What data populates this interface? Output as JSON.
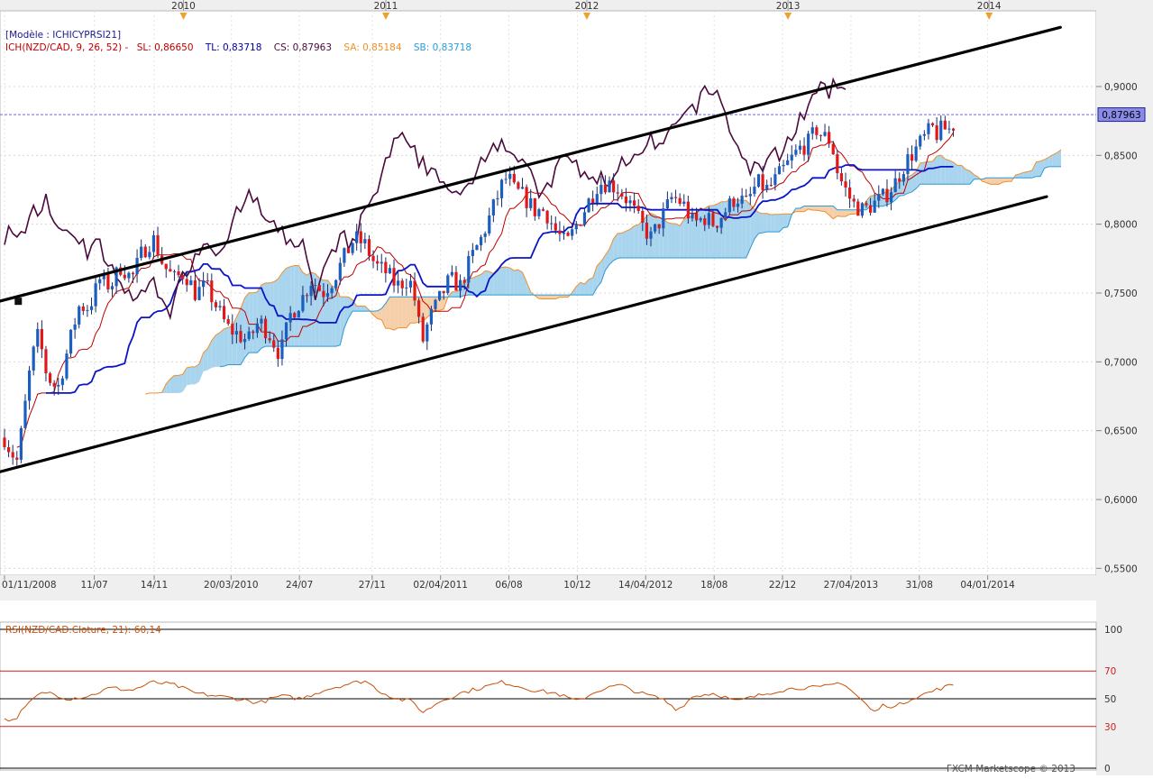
{
  "chart_data": {
    "type": "candlestick",
    "model_label": "[Modèle : ICHICYPRSI21]",
    "legend": [
      {
        "text": "ICH(NZD/CAD, 9, 26, 52) -",
        "color": "#c00000"
      },
      {
        "text": "SL: 0,86650",
        "color": "#c00000"
      },
      {
        "text": "TL: 0,83718",
        "color": "#0000a0"
      },
      {
        "text": "CS: 0,87963",
        "color": "#4a0a3c"
      },
      {
        "text": "SA: 0,85184",
        "color": "#f0902a"
      },
      {
        "text": "SB: 0,83718",
        "color": "#2a9ad8"
      }
    ],
    "current_price_label": "0,87963",
    "current_price": 0.87963,
    "year_markers": [
      {
        "label": "2010",
        "t": 0.1688
      },
      {
        "label": "2011",
        "t": 0.3597
      },
      {
        "label": "2012",
        "t": 0.5493
      },
      {
        "label": "2013",
        "t": 0.739
      },
      {
        "label": "2014",
        "t": 0.9287
      }
    ],
    "date_labels": [
      {
        "label": "01/11/2008",
        "t": 0.0
      },
      {
        "label": "11/07",
        "t": 0.0847
      },
      {
        "label": "14/11",
        "t": 0.1412
      },
      {
        "label": "20/03/2010",
        "t": 0.2137
      },
      {
        "label": "24/07",
        "t": 0.2782
      },
      {
        "label": "27/11",
        "t": 0.3468
      },
      {
        "label": "02/04/2011",
        "t": 0.4113
      },
      {
        "label": "06/08",
        "t": 0.4758
      },
      {
        "label": "10/12",
        "t": 0.5403
      },
      {
        "label": "14/04/2012",
        "t": 0.6048
      },
      {
        "label": "18/08",
        "t": 0.6694
      },
      {
        "label": "22/12",
        "t": 0.7339
      },
      {
        "label": "27/04/2013",
        "t": 0.7984
      },
      {
        "label": "31/08",
        "t": 0.8629
      },
      {
        "label": "04/01/2014",
        "t": 0.9274
      }
    ],
    "y_ticks": [
      "0,9000",
      "0,8500",
      "0,8000",
      "0,7500",
      "0,7000",
      "0,6500",
      "0,6000",
      "0,5500"
    ],
    "y_tick_values": [
      0.9,
      0.85,
      0.8,
      0.75,
      0.7,
      0.65,
      0.6,
      0.55
    ],
    "ylim": [
      0.545,
      0.955
    ],
    "price_anchors": [
      [
        0.0,
        0.645
      ],
      [
        0.006,
        0.635
      ],
      [
        0.012,
        0.628
      ],
      [
        0.018,
        0.66
      ],
      [
        0.025,
        0.7
      ],
      [
        0.032,
        0.72
      ],
      [
        0.04,
        0.69
      ],
      [
        0.05,
        0.68
      ],
      [
        0.06,
        0.71
      ],
      [
        0.07,
        0.74
      ],
      [
        0.08,
        0.74
      ],
      [
        0.09,
        0.76
      ],
      [
        0.1,
        0.755
      ],
      [
        0.11,
        0.77
      ],
      [
        0.12,
        0.76
      ],
      [
        0.13,
        0.78
      ],
      [
        0.14,
        0.79
      ],
      [
        0.15,
        0.77
      ],
      [
        0.16,
        0.76
      ],
      [
        0.17,
        0.765
      ],
      [
        0.18,
        0.75
      ],
      [
        0.19,
        0.755
      ],
      [
        0.2,
        0.74
      ],
      [
        0.21,
        0.725
      ],
      [
        0.22,
        0.72
      ],
      [
        0.23,
        0.715
      ],
      [
        0.24,
        0.73
      ],
      [
        0.25,
        0.72
      ],
      [
        0.26,
        0.705
      ],
      [
        0.27,
        0.735
      ],
      [
        0.28,
        0.745
      ],
      [
        0.29,
        0.76
      ],
      [
        0.3,
        0.75
      ],
      [
        0.31,
        0.76
      ],
      [
        0.32,
        0.775
      ],
      [
        0.33,
        0.79
      ],
      [
        0.34,
        0.785
      ],
      [
        0.35,
        0.77
      ],
      [
        0.36,
        0.765
      ],
      [
        0.37,
        0.755
      ],
      [
        0.38,
        0.76
      ],
      [
        0.385,
        0.755
      ],
      [
        0.39,
        0.73
      ],
      [
        0.395,
        0.715
      ],
      [
        0.4,
        0.73
      ],
      [
        0.41,
        0.745
      ],
      [
        0.42,
        0.76
      ],
      [
        0.43,
        0.755
      ],
      [
        0.44,
        0.775
      ],
      [
        0.45,
        0.79
      ],
      [
        0.455,
        0.8
      ],
      [
        0.46,
        0.81
      ],
      [
        0.47,
        0.83
      ],
      [
        0.475,
        0.835
      ],
      [
        0.48,
        0.825
      ],
      [
        0.49,
        0.82
      ],
      [
        0.5,
        0.81
      ],
      [
        0.51,
        0.81
      ],
      [
        0.52,
        0.795
      ],
      [
        0.53,
        0.785
      ],
      [
        0.54,
        0.8
      ],
      [
        0.55,
        0.815
      ],
      [
        0.56,
        0.83
      ],
      [
        0.57,
        0.83
      ],
      [
        0.58,
        0.825
      ],
      [
        0.59,
        0.815
      ],
      [
        0.6,
        0.8
      ],
      [
        0.61,
        0.79
      ],
      [
        0.62,
        0.805
      ],
      [
        0.63,
        0.82
      ],
      [
        0.64,
        0.815
      ],
      [
        0.65,
        0.8
      ],
      [
        0.66,
        0.805
      ],
      [
        0.67,
        0.8
      ],
      [
        0.68,
        0.81
      ],
      [
        0.69,
        0.82
      ],
      [
        0.7,
        0.815
      ],
      [
        0.71,
        0.83
      ],
      [
        0.72,
        0.825
      ],
      [
        0.73,
        0.835
      ],
      [
        0.74,
        0.845
      ],
      [
        0.75,
        0.855
      ],
      [
        0.76,
        0.86
      ],
      [
        0.765,
        0.87
      ],
      [
        0.77,
        0.865
      ],
      [
        0.78,
        0.86
      ],
      [
        0.785,
        0.84
      ],
      [
        0.79,
        0.83
      ],
      [
        0.8,
        0.815
      ],
      [
        0.81,
        0.81
      ],
      [
        0.82,
        0.815
      ],
      [
        0.83,
        0.82
      ],
      [
        0.84,
        0.83
      ],
      [
        0.85,
        0.845
      ],
      [
        0.86,
        0.855
      ],
      [
        0.87,
        0.865
      ],
      [
        0.875,
        0.87
      ],
      [
        0.88,
        0.865
      ],
      [
        0.885,
        0.87
      ],
      [
        0.89,
        0.868
      ],
      [
        0.895,
        0.872
      ]
    ],
    "channel_lines": [
      {
        "name": "upper",
        "from": [
          -0.005,
          0.744
        ],
        "to": [
          0.996,
          0.943
        ]
      },
      {
        "name": "lower",
        "from": [
          -0.005,
          0.62
        ],
        "to": [
          0.983,
          0.82
        ]
      }
    ],
    "rsi": {
      "label": "RSI(NZD/CAD.Cloture, 21): 60,14",
      "levels": [
        100,
        70,
        50,
        30,
        0
      ],
      "level_labels": [
        "100",
        "70",
        "50",
        "30",
        "0"
      ],
      "level_colors": [
        "#000000",
        "#d02020",
        "#000000",
        "#d02020",
        "#000000"
      ],
      "line_color": "#c8500a",
      "anchors": [
        [
          0.0,
          36
        ],
        [
          0.008,
          34
        ],
        [
          0.02,
          44
        ],
        [
          0.03,
          52
        ],
        [
          0.04,
          55
        ],
        [
          0.06,
          50
        ],
        [
          0.08,
          52
        ],
        [
          0.1,
          58
        ],
        [
          0.12,
          56
        ],
        [
          0.14,
          62
        ],
        [
          0.16,
          60
        ],
        [
          0.18,
          54
        ],
        [
          0.2,
          52
        ],
        [
          0.22,
          50
        ],
        [
          0.24,
          47
        ],
        [
          0.26,
          52
        ],
        [
          0.28,
          50
        ],
        [
          0.3,
          56
        ],
        [
          0.32,
          60
        ],
        [
          0.34,
          63
        ],
        [
          0.355,
          55
        ],
        [
          0.37,
          50
        ],
        [
          0.385,
          48
        ],
        [
          0.395,
          40
        ],
        [
          0.41,
          48
        ],
        [
          0.43,
          54
        ],
        [
          0.45,
          58
        ],
        [
          0.47,
          62
        ],
        [
          0.48,
          60
        ],
        [
          0.5,
          56
        ],
        [
          0.52,
          54
        ],
        [
          0.54,
          48
        ],
        [
          0.56,
          56
        ],
        [
          0.58,
          60
        ],
        [
          0.6,
          54
        ],
        [
          0.62,
          50
        ],
        [
          0.635,
          42
        ],
        [
          0.65,
          52
        ],
        [
          0.67,
          54
        ],
        [
          0.69,
          48
        ],
        [
          0.71,
          52
        ],
        [
          0.73,
          56
        ],
        [
          0.75,
          58
        ],
        [
          0.77,
          58
        ],
        [
          0.79,
          62
        ],
        [
          0.8,
          55
        ],
        [
          0.81,
          48
        ],
        [
          0.82,
          40
        ],
        [
          0.83,
          46
        ],
        [
          0.84,
          44
        ],
        [
          0.855,
          50
        ],
        [
          0.87,
          54
        ],
        [
          0.885,
          58
        ],
        [
          0.895,
          60
        ]
      ]
    },
    "colors": {
      "bull": "#1a5fc0",
      "bear": "#e01818",
      "tenkan": "#c00000",
      "kijun": "#0a14c8",
      "chikou": "#4a0a3c",
      "senkou_a": "#f0902a",
      "senkou_b": "#2a9ad8",
      "kumo_bull": "#a8d4ee",
      "kumo_bear": "#f5cfaa",
      "channel": "#000000"
    }
  },
  "footer": {
    "copyright": "FXCM Marketscope © 2013"
  }
}
